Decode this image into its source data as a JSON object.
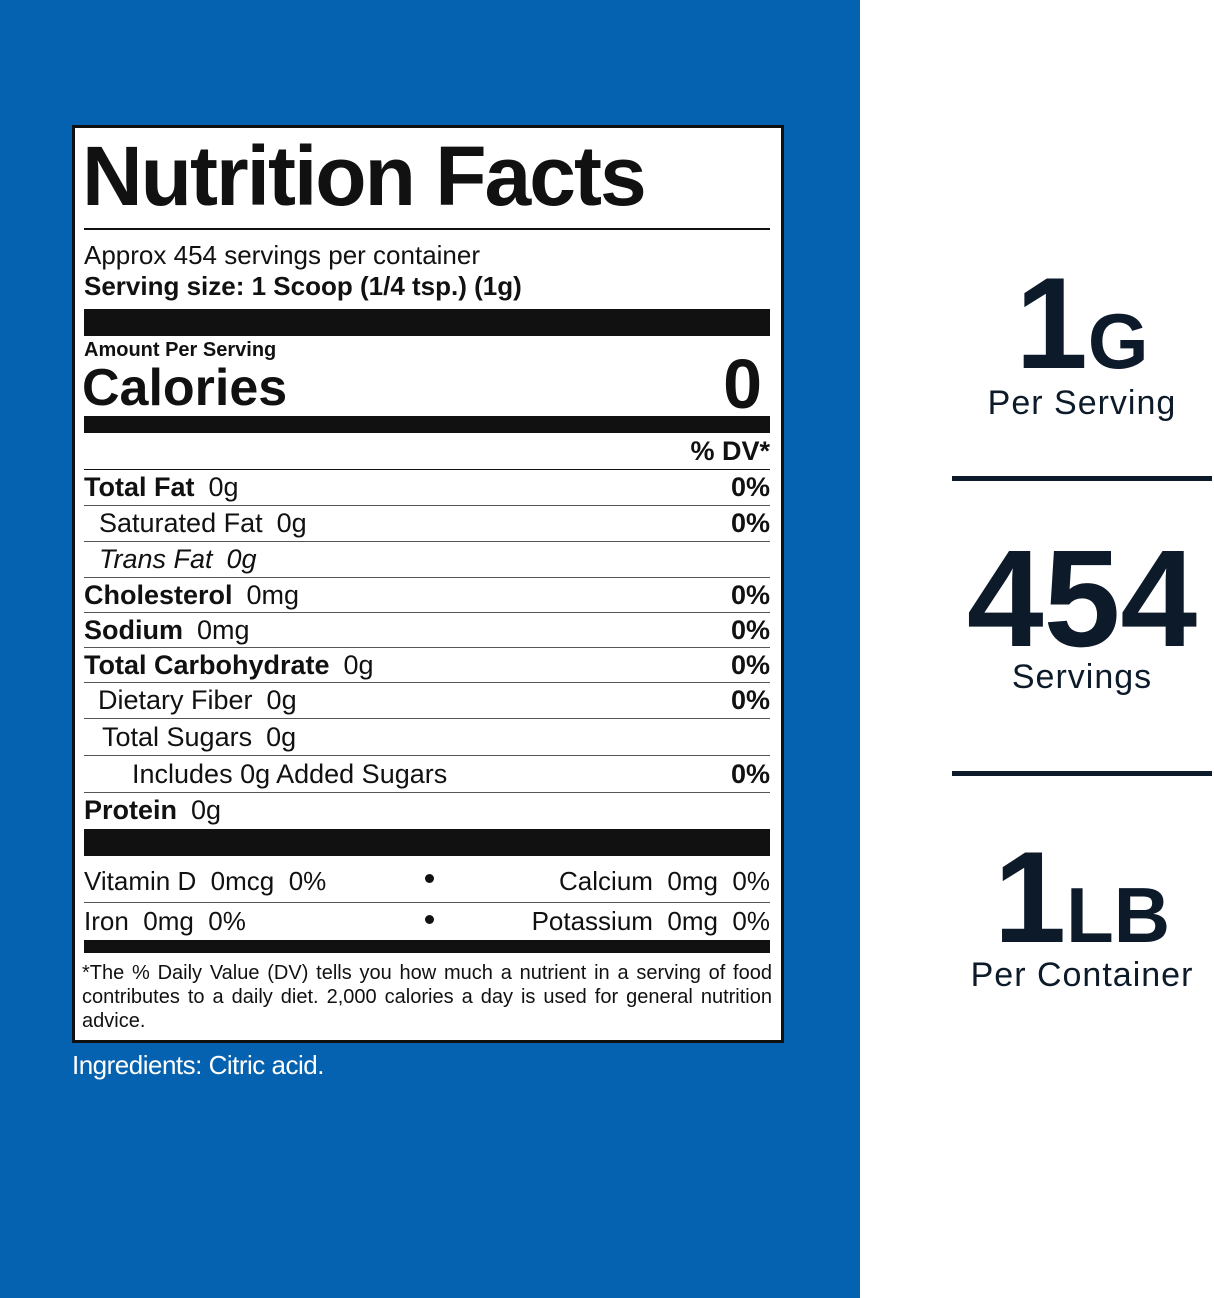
{
  "label": {
    "title": "Nutrition Facts",
    "servings": "Approx 454 servings per container",
    "serving_size": "Serving size: 1 Scoop (1/4 tsp.) (1g)",
    "amount_per_serving": "Amount Per Serving",
    "calories_label": "Calories",
    "calories": "0",
    "dv_header": "% DV*",
    "nutrients": [
      {
        "name": "Total Fat",
        "amount": "0g",
        "dv": "0%"
      },
      {
        "name": "Saturated Fat",
        "amount": "0g",
        "dv": "0%"
      },
      {
        "name": "Trans Fat",
        "amount": "0g"
      },
      {
        "name": "Cholesterol",
        "amount": "0mg",
        "dv": "0%"
      },
      {
        "name": "Sodium",
        "amount": "0mg",
        "dv": "0%"
      },
      {
        "name": "Total Carbohydrate",
        "amount": "0g",
        "dv": "0%"
      },
      {
        "name": "Dietary Fiber",
        "amount": "0g",
        "dv": "0%"
      },
      {
        "name": "Total Sugars",
        "amount": "0g"
      },
      {
        "name": "Includes 0g Added Sugars",
        "dv": "0%"
      },
      {
        "name": "Protein",
        "amount": "0g"
      }
    ],
    "vitamins": [
      [
        "Vitamin D  0mcg  0%",
        "Calcium  0mg  0%"
      ],
      [
        "Iron  0mg  0%",
        "Potassium  0mg  0%"
      ]
    ],
    "footnote": "*The % Daily Value (DV) tells you how much a nutrient in a serving of food contributes to a daily diet. 2,000 calories a day is used for general nutrition advice."
  },
  "ingredients": "Ingredients: Citric acid.",
  "highlights": [
    {
      "value": "1",
      "unit": "G",
      "caption": "Per Serving"
    },
    {
      "value": "454",
      "caption": "Servings"
    },
    {
      "value": "1",
      "unit": "LB",
      "caption": "Per Container"
    }
  ]
}
